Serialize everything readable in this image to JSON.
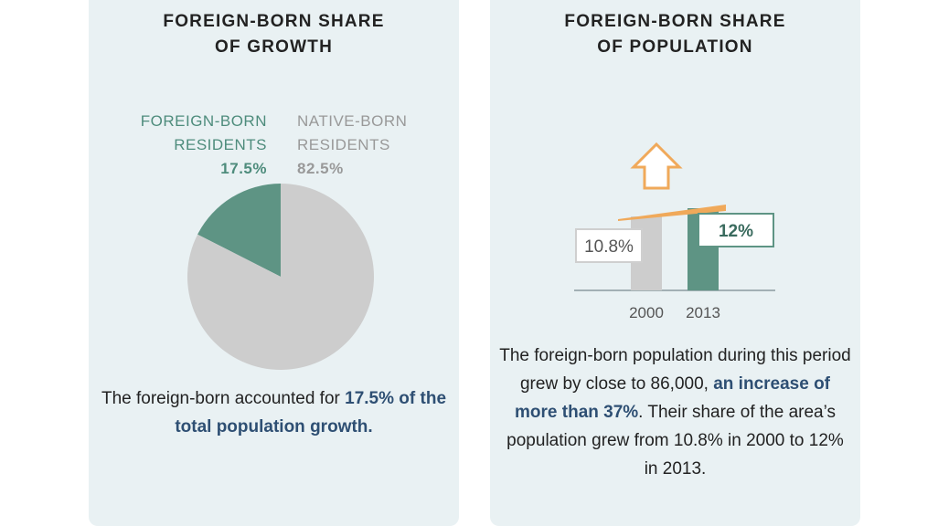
{
  "left_panel": {
    "title_lines": [
      "FOREIGN-BORN SHARE",
      "OF GROWTH"
    ],
    "legend": {
      "foreign": {
        "line1": "FOREIGN-BORN",
        "line2": "RESIDENTS",
        "pct": "17.5%"
      },
      "native": {
        "line1": "NATIVE-BORN",
        "line2": "RESIDENTS",
        "pct": "82.5%"
      }
    },
    "caption": {
      "pre": "The foreign-born accounted for ",
      "highlight": "17.5% of the total population growth",
      "post": "."
    }
  },
  "right_panel": {
    "title_lines": [
      "FOREIGN-BORN SHARE",
      "OF POPULATION"
    ],
    "caption": {
      "pre": "The foreign-born population during this period grew by close to 86,000, ",
      "highlight": "an increase of more than 37%",
      "post": ". Their share of the area’s population grew from 10.8% in 2000 to 12% in 2013."
    }
  },
  "colors": {
    "foreign": "#5e9484",
    "native": "#cdcdcd",
    "accent": "#f0a95a",
    "highlight_text": "#2e4f73",
    "panel": "#e9f1f3"
  },
  "chart_data": [
    {
      "type": "pie",
      "categories": [
        "FOREIGN-BORN RESIDENTS",
        "NATIVE-BORN RESIDENTS"
      ],
      "values": [
        17.5,
        82.5
      ],
      "labels": [
        "17.5%",
        "82.5%"
      ]
    },
    {
      "type": "bar",
      "categories": [
        "2000",
        "2013"
      ],
      "values": [
        10.8,
        12
      ],
      "labels": [
        "10.8%",
        "12%"
      ]
    }
  ]
}
